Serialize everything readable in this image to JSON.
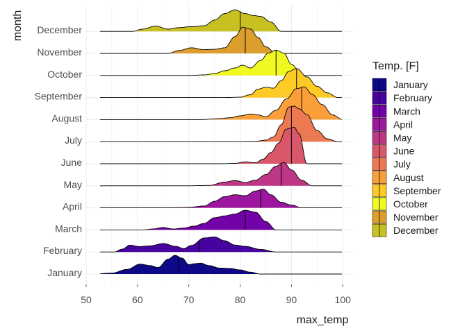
{
  "chart_data": {
    "type": "ridgeline",
    "xlabel": "max_temp",
    "ylabel": "month",
    "xlim": [
      50,
      102
    ],
    "x_ticks": [
      50,
      60,
      70,
      80,
      90,
      100
    ],
    "grid": true,
    "legend": {
      "title": "Temp. [F]",
      "placement": "right"
    },
    "series": [
      {
        "name": "January",
        "color": "#0D0887",
        "median": 68,
        "x": [
          51.5,
          55,
          58,
          60.5,
          62.5,
          64,
          66,
          67.3,
          68.7,
          70,
          71,
          72.3,
          74,
          76,
          78,
          80,
          82,
          84
        ],
        "density": [
          0,
          0.05,
          0.25,
          0.53,
          0.45,
          0.35,
          0.8,
          1.0,
          0.85,
          0.5,
          0.55,
          0.58,
          0.45,
          0.32,
          0.3,
          0.22,
          0.1,
          0
        ]
      },
      {
        "name": "February",
        "color": "#47039F",
        "median": 72,
        "x": [
          55.5,
          57,
          58.5,
          60.5,
          62.5,
          65,
          67.5,
          69,
          70.5,
          73,
          75,
          77,
          79,
          81,
          84,
          87
        ],
        "density": [
          0,
          0.15,
          0.36,
          0.29,
          0.33,
          0.45,
          0.3,
          0.18,
          0.35,
          0.75,
          0.8,
          0.6,
          0.37,
          0.3,
          0.14,
          0
        ]
      },
      {
        "name": "March",
        "color": "#7301A8",
        "median": 81,
        "x": [
          61,
          63,
          65,
          67,
          69,
          71,
          73,
          75,
          77,
          79,
          81,
          83,
          85,
          87
        ],
        "density": [
          0,
          0.05,
          0.13,
          0.05,
          0.1,
          0.2,
          0.35,
          0.65,
          0.75,
          0.85,
          1.05,
          0.95,
          0.45,
          0
        ]
      },
      {
        "name": "April",
        "color": "#9C179E",
        "median": 84,
        "x": [
          67,
          70,
          73,
          75,
          77,
          79,
          81,
          83,
          84.5,
          86,
          88,
          90,
          92
        ],
        "density": [
          0,
          0.03,
          0.1,
          0.35,
          0.6,
          0.7,
          0.65,
          0.9,
          1.0,
          0.7,
          0.3,
          0.15,
          0
        ]
      },
      {
        "name": "May",
        "color": "#BD3786",
        "median": 88,
        "x": [
          70,
          74,
          77,
          79,
          81,
          83,
          85,
          87,
          88.5,
          90,
          92,
          94
        ],
        "density": [
          0,
          0.02,
          0.2,
          0.28,
          0.18,
          0.3,
          0.6,
          1.05,
          1.25,
          0.85,
          0.3,
          0
        ]
      },
      {
        "name": "June",
        "color": "#D8576B",
        "median": 90,
        "x": [
          76,
          79,
          81,
          83,
          84.5,
          86,
          87.5,
          89,
          90.5,
          91.5,
          93
        ],
        "density": [
          0,
          0.02,
          0.1,
          0.05,
          0.25,
          0.6,
          1.1,
          1.85,
          1.95,
          1.6,
          0
        ]
      },
      {
        "name": "July",
        "color": "#ED7953",
        "median": 90,
        "x": [
          80,
          83,
          85,
          86.5,
          88,
          89.5,
          90.5,
          91.5,
          93,
          95,
          97,
          99
        ],
        "density": [
          0,
          0.02,
          0.08,
          0.25,
          0.9,
          1.85,
          1.9,
          1.75,
          1.45,
          0.6,
          0.15,
          0
        ]
      },
      {
        "name": "August",
        "color": "#FB9F3A",
        "median": 92,
        "x": [
          72,
          76,
          78,
          80,
          82,
          83.5,
          85,
          87,
          89,
          91,
          92.5,
          94,
          96,
          98,
          100
        ],
        "density": [
          0,
          0.05,
          0.1,
          0.2,
          0.3,
          0.25,
          0.15,
          0.5,
          1.1,
          1.65,
          1.75,
          1.35,
          0.8,
          0.25,
          0
        ]
      },
      {
        "name": "September",
        "color": "#FDCA26",
        "median": 91,
        "x": [
          77,
          80,
          82,
          83.5,
          85,
          86.5,
          88,
          89.5,
          91,
          93,
          95,
          97,
          99
        ],
        "density": [
          0,
          0.02,
          0.15,
          0.45,
          0.55,
          0.5,
          0.9,
          1.4,
          1.55,
          1.1,
          0.6,
          0.25,
          0
        ]
      },
      {
        "name": "October",
        "color": "#F0F921",
        "median": 87,
        "x": [
          70,
          73,
          75,
          77,
          79,
          80.5,
          82,
          84,
          85.5,
          87,
          88.5,
          90,
          92
        ],
        "density": [
          0,
          0.03,
          0.1,
          0.25,
          0.4,
          0.55,
          0.4,
          0.8,
          1.2,
          1.35,
          1.2,
          0.6,
          0
        ]
      },
      {
        "name": "November",
        "color": "#DD9E2E",
        "median": 81,
        "x": [
          66,
          68,
          70.5,
          73,
          75,
          77,
          79,
          80.5,
          82,
          83.5,
          85,
          87
        ],
        "density": [
          0,
          0.15,
          0.3,
          0.2,
          0.22,
          0.3,
          0.9,
          1.4,
          1.3,
          0.85,
          0.35,
          0
        ]
      },
      {
        "name": "December",
        "color": "#C8C021",
        "median": 80,
        "x": [
          59,
          61,
          63.5,
          66,
          68,
          70.5,
          73,
          75,
          77,
          79,
          81,
          82.5,
          84,
          86,
          88
        ],
        "density": [
          0,
          0.12,
          0.28,
          0.12,
          0.2,
          0.25,
          0.3,
          0.6,
          0.95,
          1.15,
          0.95,
          0.85,
          0.8,
          0.5,
          0
        ]
      }
    ]
  }
}
